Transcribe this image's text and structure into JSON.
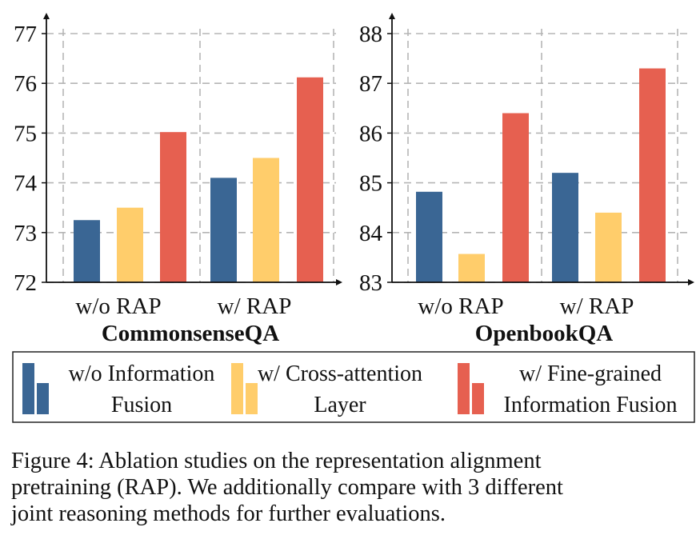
{
  "figure": {
    "caption_lines": [
      "Figure 4: Ablation studies on the representation alignment",
      "pretraining (RAP). We additionally compare with 3 different",
      "joint reasoning methods for further evaluations."
    ]
  },
  "legend": {
    "items": [
      {
        "lines": [
          "w/o Information",
          "Fusion"
        ],
        "color": "#3a6694"
      },
      {
        "lines": [
          "w/ Cross-attention",
          "Layer"
        ],
        "color": "#ffcd6b"
      },
      {
        "lines": [
          "w/ Fine-grained",
          "Information Fusion"
        ],
        "color": "#e66050"
      }
    ]
  },
  "chart_data": [
    {
      "type": "bar",
      "title": "CommonsenseQA",
      "categories": [
        "w/o RAP",
        "w/ RAP"
      ],
      "ylim": [
        72,
        77
      ],
      "yticks": [
        "72",
        "73",
        "74",
        "75",
        "76",
        "77"
      ],
      "grid": true,
      "series": [
        {
          "name": "w/o Information Fusion",
          "color": "#3a6694",
          "values": [
            73.25,
            74.1
          ]
        },
        {
          "name": "w/ Cross-attention Layer",
          "color": "#ffcd6b",
          "values": [
            73.5,
            74.5
          ]
        },
        {
          "name": "w/ Fine-grained Information Fusion",
          "color": "#e66050",
          "values": [
            75.02,
            76.12
          ]
        }
      ]
    },
    {
      "type": "bar",
      "title": "OpenbookQA",
      "categories": [
        "w/o RAP",
        "w/ RAP"
      ],
      "ylim": [
        83,
        88
      ],
      "yticks": [
        "83",
        "84",
        "85",
        "86",
        "87",
        "88"
      ],
      "grid": true,
      "series": [
        {
          "name": "w/o Information Fusion",
          "color": "#3a6694",
          "values": [
            84.82,
            85.2
          ]
        },
        {
          "name": "w/ Cross-attention Layer",
          "color": "#ffcd6b",
          "values": [
            83.57,
            84.4
          ]
        },
        {
          "name": "w/ Fine-grained Information Fusion",
          "color": "#e66050",
          "values": [
            86.4,
            87.3
          ]
        }
      ]
    }
  ]
}
